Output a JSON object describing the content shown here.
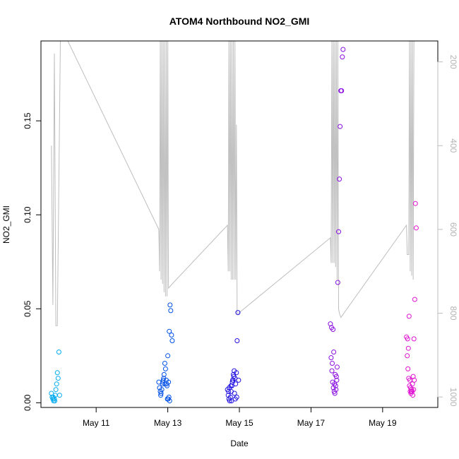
{
  "chart_data": {
    "type": "scatter",
    "title": "ATOM4 Northbound NO2_GMI",
    "xlabel": "Date",
    "ylabel": "NO2_GMI",
    "xlim": [
      "2018-05-09T11:00",
      "2018-05-20T13:00"
    ],
    "ylim": [
      -0.0025,
      0.1925
    ],
    "x_ticks": [
      {
        "date": "2018-05-11T00:00",
        "label": "May 11"
      },
      {
        "date": "2018-05-13T00:00",
        "label": "May 13"
      },
      {
        "date": "2018-05-15T00:00",
        "label": "May 15"
      },
      {
        "date": "2018-05-17T00:00",
        "label": "May 17"
      },
      {
        "date": "2018-05-19T00:00",
        "label": "May 19"
      }
    ],
    "y_ticks": [
      0.0,
      0.05,
      0.1,
      0.15
    ],
    "y_tick_labels": [
      "0.00",
      "0.05",
      "0.10",
      "0.15"
    ],
    "y2": {
      "label": "",
      "ylim": [
        1025,
        150
      ],
      "ticks": [
        200,
        400,
        600,
        800,
        1000
      ],
      "tick_labels": [
        "200",
        "400",
        "600",
        "800",
        "1000"
      ],
      "color": "#bebebe"
    },
    "pressure_trace": [
      [
        "2018-05-09T18:00",
        400
      ],
      [
        "2018-05-09T19:00",
        780
      ],
      [
        "2018-05-09T20:00",
        180
      ],
      [
        "2018-05-09T21:00",
        830
      ],
      [
        "2018-05-09T22:00",
        830
      ],
      [
        "2018-05-10T00:00",
        150
      ],
      [
        "2018-05-10T05:00",
        150
      ],
      [
        "2018-05-12T18:00",
        600
      ],
      [
        "2018-05-12T18:30",
        700
      ],
      [
        "2018-05-12T19:00",
        150
      ],
      [
        "2018-05-12T19:30",
        720
      ],
      [
        "2018-05-12T20:00",
        150
      ],
      [
        "2018-05-12T20:30",
        730
      ],
      [
        "2018-05-12T21:00",
        150
      ],
      [
        "2018-05-12T21:30",
        750
      ],
      [
        "2018-05-12T22:00",
        150
      ],
      [
        "2018-05-12T22:30",
        760
      ],
      [
        "2018-05-12T23:00",
        150
      ],
      [
        "2018-05-12T23:30",
        760
      ],
      [
        "2018-05-13T00:00",
        150
      ],
      [
        "2018-05-13T00:30",
        740
      ],
      [
        "2018-05-13T03:00",
        730
      ],
      [
        "2018-05-14T16:00",
        590
      ],
      [
        "2018-05-14T16:30",
        700
      ],
      [
        "2018-05-14T17:00",
        150
      ],
      [
        "2018-05-14T17:30",
        700
      ],
      [
        "2018-05-14T18:00",
        150
      ],
      [
        "2018-05-14T18:30",
        720
      ],
      [
        "2018-05-14T19:00",
        150
      ],
      [
        "2018-05-14T19:30",
        720
      ],
      [
        "2018-05-14T20:00",
        150
      ],
      [
        "2018-05-14T20:30",
        720
      ],
      [
        "2018-05-14T21:00",
        150
      ],
      [
        "2018-05-14T21:30",
        720
      ],
      [
        "2018-05-14T22:00",
        350
      ],
      [
        "2018-05-14T22:30",
        800
      ],
      [
        "2018-05-14T23:30",
        800
      ],
      [
        "2018-05-17T13:00",
        620
      ],
      [
        "2018-05-17T13:30",
        680
      ],
      [
        "2018-05-17T14:00",
        150
      ],
      [
        "2018-05-17T14:30",
        680
      ],
      [
        "2018-05-17T15:00",
        150
      ],
      [
        "2018-05-17T15:30",
        680
      ],
      [
        "2018-05-17T16:00",
        150
      ],
      [
        "2018-05-17T16:30",
        690
      ],
      [
        "2018-05-17T17:00",
        150
      ],
      [
        "2018-05-17T17:30",
        720
      ],
      [
        "2018-05-17T18:00",
        150
      ],
      [
        "2018-05-17T18:30",
        790
      ],
      [
        "2018-05-17T19:00",
        800
      ],
      [
        "2018-05-17T20:00",
        810
      ],
      [
        "2018-05-19T16:00",
        590
      ],
      [
        "2018-05-19T16:30",
        660
      ],
      [
        "2018-05-19T17:30",
        660
      ],
      [
        "2018-05-19T18:00",
        150
      ],
      [
        "2018-05-19T18:30",
        700
      ],
      [
        "2018-05-19T19:00",
        150
      ],
      [
        "2018-05-19T19:30",
        710
      ],
      [
        "2018-05-19T20:00",
        150
      ],
      [
        "2018-05-19T20:30",
        720
      ],
      [
        "2018-05-19T21:00",
        150
      ]
    ],
    "series": [
      {
        "date": "2018-05-09",
        "color": "#00aaee",
        "points": [
          [
            "2018-05-09T18:00",
            0.005
          ],
          [
            "2018-05-09T18:30",
            0.003
          ],
          [
            "2018-05-09T19:00",
            0.002
          ],
          [
            "2018-05-09T19:30",
            0.001
          ],
          [
            "2018-05-09T20:00",
            0.002
          ],
          [
            "2018-05-09T20:30",
            0.004
          ],
          [
            "2018-05-09T21:00",
            0.007
          ],
          [
            "2018-05-09T21:30",
            0.01
          ],
          [
            "2018-05-09T22:00",
            0.016
          ],
          [
            "2018-05-09T22:30",
            0.013
          ],
          [
            "2018-05-09T23:00",
            0.027
          ],
          [
            "2018-05-09T23:30",
            0.004
          ],
          [
            "2018-05-09T19:15",
            0.003
          ],
          [
            "2018-05-09T20:15",
            0.001
          ]
        ]
      },
      {
        "date": "2018-05-12",
        "color": "#0050e6",
        "points": [
          [
            "2018-05-12T18:00",
            0.011
          ],
          [
            "2018-05-12T18:30",
            0.008
          ],
          [
            "2018-05-12T19:00",
            0.006
          ],
          [
            "2018-05-12T19:30",
            0.005
          ],
          [
            "2018-05-12T20:00",
            0.007
          ],
          [
            "2018-05-12T20:30",
            0.01
          ],
          [
            "2018-05-12T21:00",
            0.012
          ],
          [
            "2018-05-12T21:30",
            0.015
          ],
          [
            "2018-05-12T22:00",
            0.021
          ],
          [
            "2018-05-12T22:30",
            0.018
          ],
          [
            "2018-05-12T23:00",
            0.012
          ],
          [
            "2018-05-12T23:30",
            0.009
          ],
          [
            "2018-05-13T00:00",
            0.025
          ],
          [
            "2018-05-13T00:30",
            0.011
          ],
          [
            "2018-05-13T01:00",
            0.038
          ],
          [
            "2018-05-13T01:30",
            0.052
          ],
          [
            "2018-05-13T02:00",
            0.049
          ],
          [
            "2018-05-13T02:30",
            0.036
          ],
          [
            "2018-05-13T03:00",
            0.033
          ],
          [
            "2018-05-13T00:15",
            0.002
          ],
          [
            "2018-05-13T01:15",
            0.001
          ],
          [
            "2018-05-12T23:45",
            0.002
          ],
          [
            "2018-05-12T19:15",
            0.004
          ],
          [
            "2018-05-12T21:15",
            0.013
          ],
          [
            "2018-05-12T22:15",
            0.01
          ],
          [
            "2018-05-13T00:45",
            0.003
          ],
          [
            "2018-05-12T20:45",
            0.011
          ],
          [
            "2018-05-12T23:15",
            0.01
          ]
        ]
      },
      {
        "date": "2018-05-14",
        "color": "#2010e0",
        "points": [
          [
            "2018-05-14T16:00",
            0.007
          ],
          [
            "2018-05-14T16:30",
            0.004
          ],
          [
            "2018-05-14T17:00",
            0.002
          ],
          [
            "2018-05-14T17:30",
            0.001
          ],
          [
            "2018-05-14T18:00",
            0.003
          ],
          [
            "2018-05-14T18:30",
            0.006
          ],
          [
            "2018-05-14T19:00",
            0.009
          ],
          [
            "2018-05-14T19:30",
            0.012
          ],
          [
            "2018-05-14T20:00",
            0.015
          ],
          [
            "2018-05-14T20:30",
            0.017
          ],
          [
            "2018-05-14T21:00",
            0.013
          ],
          [
            "2018-05-14T21:30",
            0.01
          ],
          [
            "2018-05-14T22:00",
            0.016
          ],
          [
            "2018-05-14T22:30",
            0.033
          ],
          [
            "2018-05-14T23:00",
            0.048
          ],
          [
            "2018-05-14T23:30",
            0.012
          ],
          [
            "2018-05-14T17:15",
            0.008
          ],
          [
            "2018-05-14T18:15",
            0.009
          ],
          [
            "2018-05-14T19:15",
            0.011
          ],
          [
            "2018-05-14T20:15",
            0.014
          ],
          [
            "2018-05-14T21:15",
            0.002
          ],
          [
            "2018-05-14T22:15",
            0.003
          ],
          [
            "2018-05-14T16:45",
            0.006
          ],
          [
            "2018-05-14T18:45",
            0.001
          ],
          [
            "2018-05-14T20:45",
            0.005
          ],
          [
            "2018-05-14T19:45",
            0.012
          ]
        ]
      },
      {
        "date": "2018-05-17",
        "color": "#8a10e0",
        "points": [
          [
            "2018-05-17T13:00",
            0.042
          ],
          [
            "2018-05-17T13:30",
            0.024
          ],
          [
            "2018-05-17T14:00",
            0.017
          ],
          [
            "2018-05-17T14:30",
            0.011
          ],
          [
            "2018-05-17T15:00",
            0.008
          ],
          [
            "2018-05-17T15:30",
            0.006
          ],
          [
            "2018-05-17T16:00",
            0.005
          ],
          [
            "2018-05-17T16:30",
            0.009
          ],
          [
            "2018-05-17T17:00",
            0.014
          ],
          [
            "2018-05-17T17:30",
            0.019
          ],
          [
            "2018-05-17T18:00",
            0.064
          ],
          [
            "2018-05-17T18:30",
            0.091
          ],
          [
            "2018-05-17T19:00",
            0.119
          ],
          [
            "2018-05-17T19:30",
            0.147
          ],
          [
            "2018-05-17T20:00",
            0.166
          ],
          [
            "2018-05-17T20:30",
            0.166
          ],
          [
            "2018-05-17T21:00",
            0.184
          ],
          [
            "2018-05-17T21:30",
            0.188
          ],
          [
            "2018-05-17T13:45",
            0.04
          ],
          [
            "2018-05-17T14:45",
            0.039
          ],
          [
            "2018-05-17T15:15",
            0.027
          ],
          [
            "2018-05-17T16:15",
            0.015
          ],
          [
            "2018-05-17T17:15",
            0.012
          ],
          [
            "2018-05-17T14:15",
            0.021
          ],
          [
            "2018-05-17T15:45",
            0.01
          ],
          [
            "2018-05-17T16:45",
            0.007
          ]
        ]
      },
      {
        "date": "2018-05-19",
        "color": "#e010d0",
        "points": [
          [
            "2018-05-19T16:00",
            0.035
          ],
          [
            "2018-05-19T16:30",
            0.025
          ],
          [
            "2018-05-19T17:00",
            0.018
          ],
          [
            "2018-05-19T17:30",
            0.013
          ],
          [
            "2018-05-19T18:00",
            0.009
          ],
          [
            "2018-05-19T18:30",
            0.006
          ],
          [
            "2018-05-19T19:00",
            0.005
          ],
          [
            "2018-05-19T19:30",
            0.007
          ],
          [
            "2018-05-19T20:00",
            0.01
          ],
          [
            "2018-05-19T20:30",
            0.014
          ],
          [
            "2018-05-19T21:00",
            0.034
          ],
          [
            "2018-05-19T21:30",
            0.055
          ],
          [
            "2018-05-19T22:00",
            0.106
          ],
          [
            "2018-05-19T22:30",
            0.093
          ],
          [
            "2018-05-19T16:45",
            0.034
          ],
          [
            "2018-05-19T17:15",
            0.029
          ],
          [
            "2018-05-19T17:45",
            0.046
          ],
          [
            "2018-05-19T18:15",
            0.012
          ],
          [
            "2018-05-19T18:45",
            0.008
          ],
          [
            "2018-05-19T19:15",
            0.006
          ],
          [
            "2018-05-19T19:45",
            0.006
          ],
          [
            "2018-05-19T20:15",
            0.004
          ],
          [
            "2018-05-19T20:45",
            0.007
          ],
          [
            "2018-05-19T21:15",
            0.012
          ]
        ]
      }
    ]
  }
}
